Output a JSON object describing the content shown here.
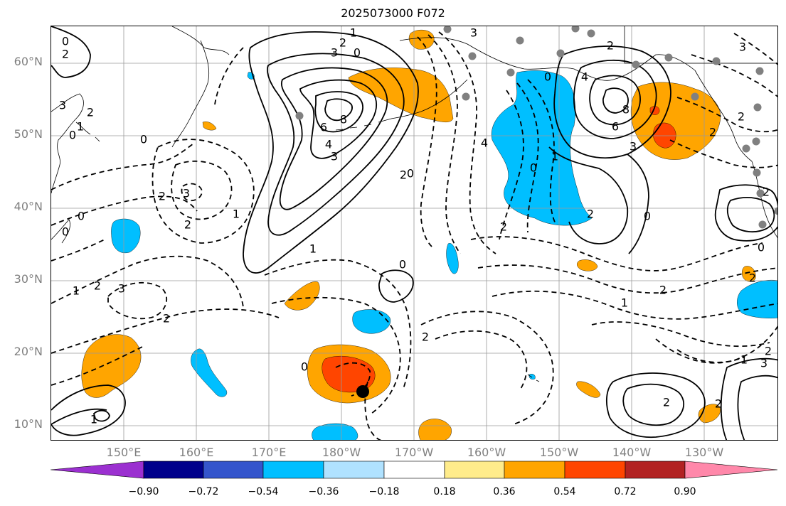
{
  "title": "2025073000 F072",
  "lat_labels": [
    "60°N",
    "50°N",
    "40°N",
    "30°N",
    "20°N",
    "10°N"
  ],
  "lon_labels": [
    "150°E",
    "160°E",
    "170°E",
    "180°W",
    "170°W",
    "160°W",
    "150°W",
    "140°W",
    "130°W"
  ],
  "colorbar": {
    "ticks": [
      "−0.90",
      "−0.72",
      "−0.54",
      "−0.36",
      "−0.18",
      "0.18",
      "0.36",
      "0.54",
      "0.72",
      "0.90"
    ],
    "colors": [
      "#9b30d0",
      "#00008b",
      "#3455cc",
      "#00bfff",
      "#b0e2ff",
      "#ffffff",
      "#ffec8b",
      "#ffa500",
      "#ff4500",
      "#b22222",
      "#ff88aa"
    ]
  },
  "contour_labels": [
    {
      "text": "0"
    },
    {
      "text": "2"
    },
    {
      "text": "3"
    },
    {
      "text": "2"
    },
    {
      "text": "1"
    },
    {
      "text": "0"
    },
    {
      "text": "8"
    },
    {
      "text": "6"
    },
    {
      "text": "4"
    },
    {
      "text": "3"
    },
    {
      "text": "0"
    },
    {
      "text": "3"
    },
    {
      "text": "2"
    },
    {
      "text": "1"
    },
    {
      "text": "0"
    },
    {
      "text": "2"
    },
    {
      "text": "3"
    },
    {
      "text": "1"
    },
    {
      "text": "3"
    },
    {
      "text": "1"
    },
    {
      "text": "2"
    },
    {
      "text": "0"
    },
    {
      "text": "2"
    },
    {
      "text": "0"
    },
    {
      "text": "2"
    },
    {
      "text": "1"
    },
    {
      "text": "1"
    },
    {
      "text": "0"
    },
    {
      "text": "2"
    },
    {
      "text": "0"
    },
    {
      "text": "4"
    },
    {
      "text": "2"
    },
    {
      "text": "0"
    },
    {
      "text": "1"
    },
    {
      "text": "0"
    },
    {
      "text": "2"
    },
    {
      "text": "8"
    },
    {
      "text": "6"
    },
    {
      "text": "3"
    },
    {
      "text": "4"
    },
    {
      "text": "2"
    },
    {
      "text": "2"
    },
    {
      "text": "0"
    },
    {
      "text": "2"
    },
    {
      "text": "1"
    },
    {
      "text": "2"
    },
    {
      "text": "2"
    },
    {
      "text": "3"
    },
    {
      "text": "2"
    },
    {
      "text": "1"
    },
    {
      "text": "0"
    },
    {
      "text": "2"
    },
    {
      "text": "3"
    },
    {
      "text": "2"
    },
    {
      "text": "2"
    },
    {
      "text": "2"
    },
    {
      "text": "3"
    },
    {
      "text": "0"
    }
  ]
}
